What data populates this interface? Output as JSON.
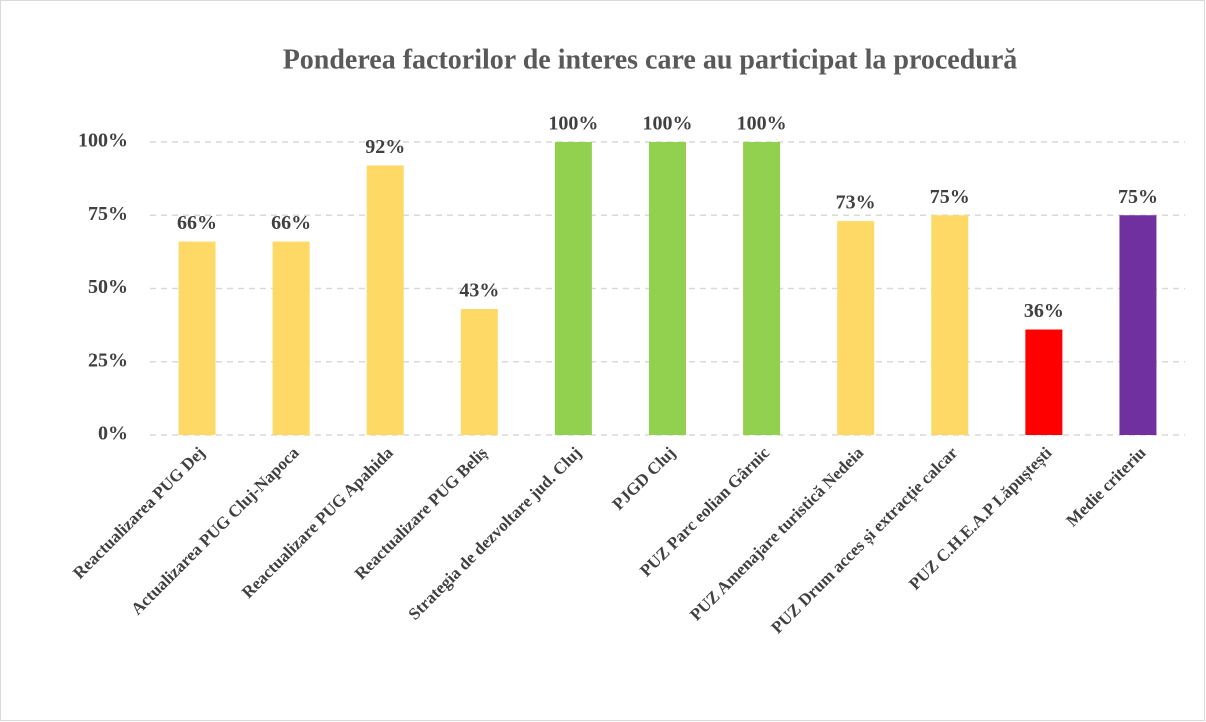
{
  "chart_data": {
    "type": "bar",
    "title": "Ponderea factorilor de interes care au participat la procedură",
    "categories": [
      "Reactualizarea PUG Dej",
      "Actualizarea PUG Cluj-Napoca",
      "Reactualizare PUG Apahida",
      "Reactualizare PUG Beliș",
      "Strategia de dezvoltare jud. Cluj",
      "PJGD Cluj",
      "PUZ Parc eolian Gârnic",
      "PUZ Amenajare turistică Nedeia",
      "PUZ Drum acces și extracție calcar",
      "PUZ C.H.E.A.P Lăpuștești",
      "Medie criteriu"
    ],
    "values": [
      66,
      66,
      92,
      43,
      100,
      100,
      100,
      73,
      75,
      36,
      75
    ],
    "value_labels": [
      "66%",
      "66%",
      "92%",
      "43%",
      "100%",
      "100%",
      "100%",
      "73%",
      "75%",
      "36%",
      "75%"
    ],
    "colors": [
      "#ffd966",
      "#ffd966",
      "#ffd966",
      "#ffd966",
      "#92d050",
      "#92d050",
      "#92d050",
      "#ffd966",
      "#ffd966",
      "#ff0000",
      "#7030a0"
    ],
    "ylim": [
      0,
      100
    ],
    "yticks": [
      {
        "value": 0,
        "label": "0%"
      },
      {
        "value": 25,
        "label": "25%"
      },
      {
        "value": 50,
        "label": "50%"
      },
      {
        "value": 75,
        "label": "75%"
      },
      {
        "value": 100,
        "label": "100%"
      }
    ],
    "grid": true
  }
}
